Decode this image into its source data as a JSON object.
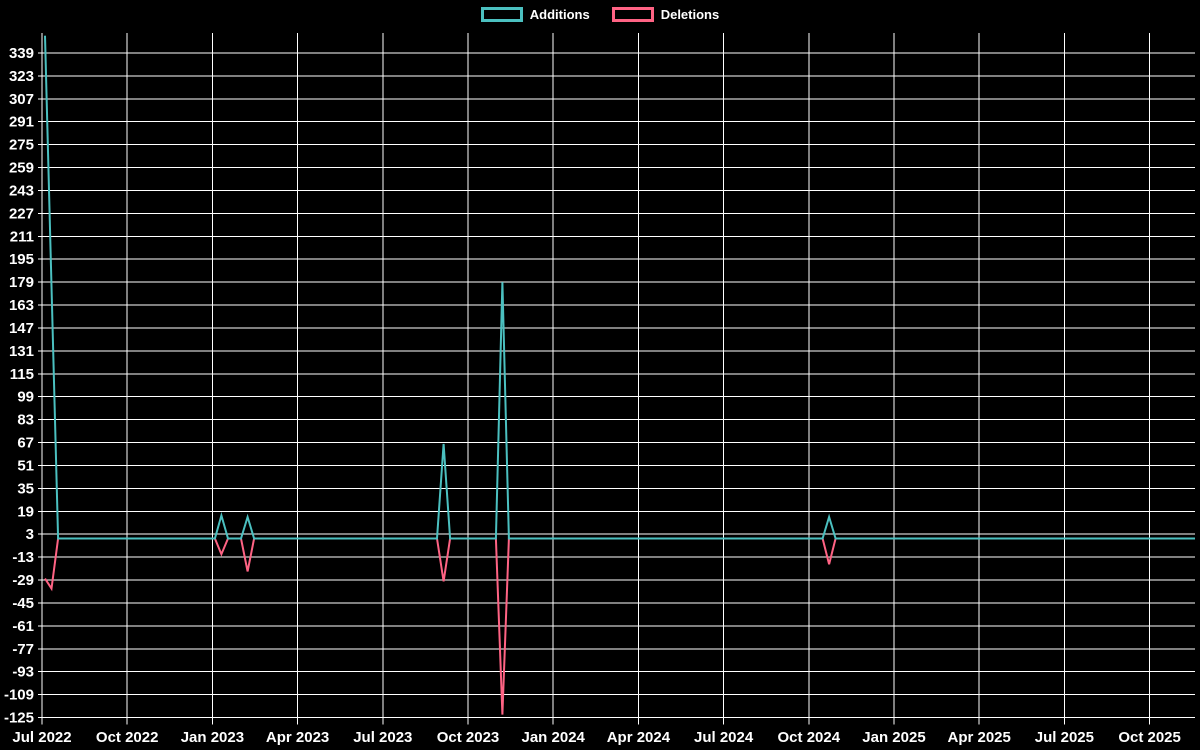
{
  "legend": {
    "items": [
      {
        "label": "Additions",
        "color": "#4bc0c0"
      },
      {
        "label": "Deletions",
        "color": "#ff6384"
      }
    ]
  },
  "chart_data": {
    "type": "line",
    "title": "",
    "legend_position": "top",
    "background_color": "#000000",
    "grid": true,
    "grid_color": "#ffffff",
    "text_color": "#ffffff",
    "line_width": 2,
    "x_axis": {
      "unit": "week",
      "total_weeks": 177,
      "first_week_label": "Jul 2022",
      "tick_labels": [
        "Jul 2022",
        "Oct 2022",
        "Jan 2023",
        "Apr 2023",
        "Jul 2023",
        "Oct 2023",
        "Jan 2024",
        "Apr 2024",
        "Jul 2024",
        "Oct 2024",
        "Jan 2025",
        "Apr 2025",
        "Jul 2025",
        "Oct 2025"
      ]
    },
    "y_axis": {
      "min": -125,
      "max": 355,
      "tick_step": 16,
      "tick_labels_top_to_bottom": [
        339,
        323,
        307,
        291,
        275,
        259,
        243,
        227,
        211,
        195,
        179,
        163,
        147,
        131,
        115,
        99,
        83,
        67,
        51,
        35,
        19,
        3,
        -13,
        -29,
        -45,
        -61,
        -77,
        -93,
        -109,
        -125
      ]
    },
    "series": [
      {
        "name": "Additions",
        "color": "#4bc0c0",
        "baseline_value": 0,
        "nonzero_points": [
          {
            "week": 0,
            "value": 351
          },
          {
            "week": 1,
            "value": 176
          },
          {
            "week": 27,
            "value": 16
          },
          {
            "week": 31,
            "value": 15
          },
          {
            "week": 61,
            "value": 66
          },
          {
            "week": 70,
            "value": 179
          },
          {
            "week": 120,
            "value": 15
          }
        ]
      },
      {
        "name": "Deletions",
        "color": "#ff6384",
        "baseline_value": 0,
        "nonzero_points": [
          {
            "week": 0,
            "value": -28
          },
          {
            "week": 1,
            "value": -35
          },
          {
            "week": 27,
            "value": -11
          },
          {
            "week": 31,
            "value": -23
          },
          {
            "week": 61,
            "value": -30
          },
          {
            "week": 70,
            "value": -123
          },
          {
            "week": 120,
            "value": -18
          }
        ]
      }
    ]
  }
}
